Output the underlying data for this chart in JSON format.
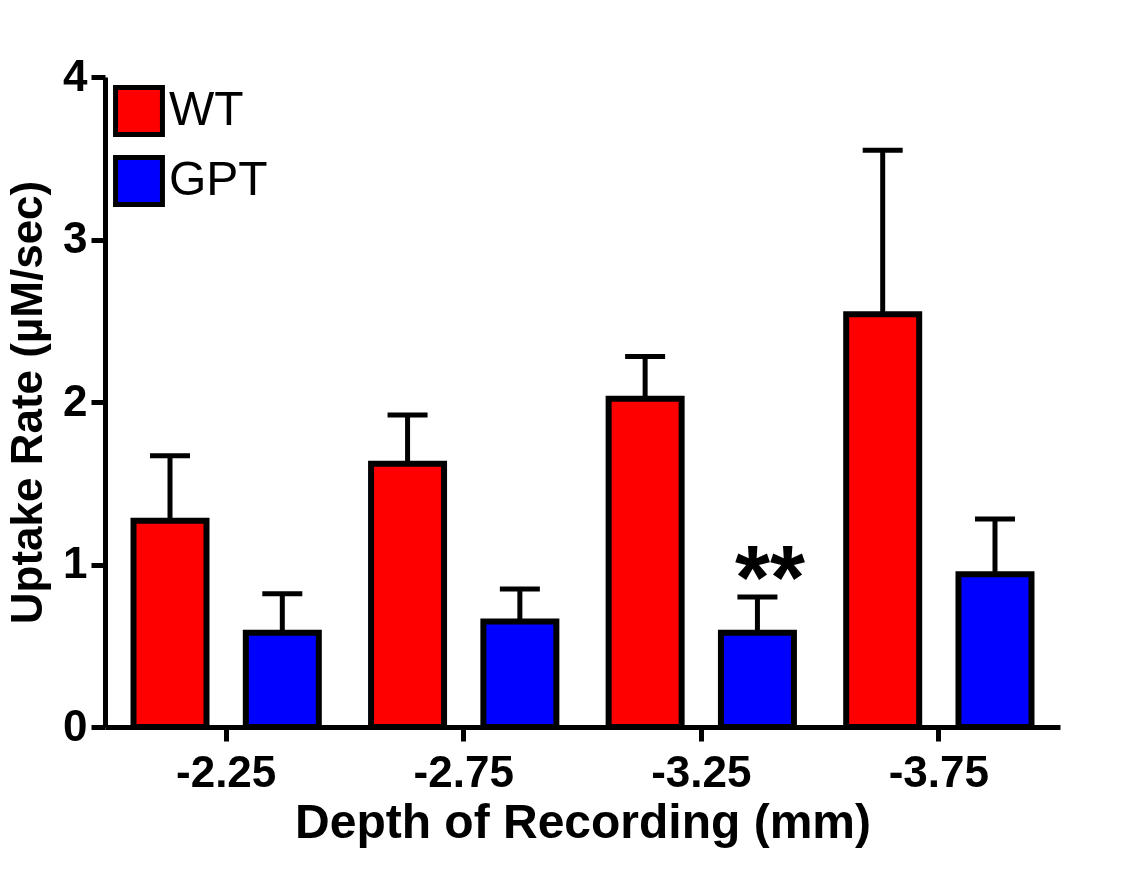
{
  "chart_data": {
    "type": "bar",
    "xlabel": "Depth of Recording (mm)",
    "ylabel": "Uptake Rate (µM/sec)",
    "categories": [
      "-2.25",
      "-2.75",
      "-3.25",
      "-3.75"
    ],
    "series": [
      {
        "name": "WT",
        "color": "#ff0000",
        "values": [
          1.27,
          1.62,
          2.02,
          2.54
        ],
        "errors": [
          [
            1.27,
            1.67
          ],
          [
            1.62,
            1.92
          ],
          [
            2.02,
            2.28
          ],
          [
            2.54,
            3.55
          ]
        ]
      },
      {
        "name": "GPT",
        "color": "#0000ff",
        "values": [
          0.58,
          0.65,
          0.58,
          0.94
        ],
        "errors": [
          [
            0.58,
            0.82
          ],
          [
            0.65,
            0.85
          ],
          [
            0.58,
            0.8
          ],
          [
            0.94,
            1.28
          ]
        ]
      }
    ],
    "ylim": [
      0,
      4
    ],
    "yticks": [
      0,
      1,
      2,
      3,
      4
    ],
    "grid": false,
    "legend": "top left",
    "annotations": [
      "**"
    ]
  }
}
